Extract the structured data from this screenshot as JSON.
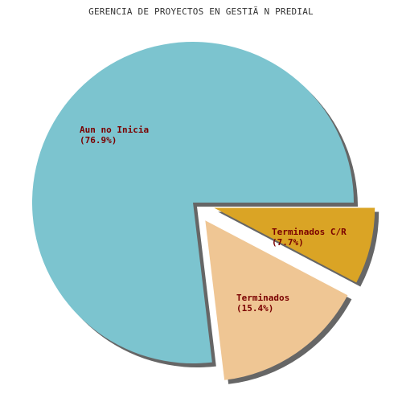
{
  "chart_data": {
    "type": "pie",
    "title": "GERENCIA DE PROYECTOS EN GESTIÃ N PREDIAL",
    "slices": [
      {
        "label": "Aun no Inicia",
        "value": 76.9,
        "pct_text": "(76.9%)",
        "color": "#7cc4cf",
        "exploded": false
      },
      {
        "label": "Terminados",
        "value": 15.4,
        "pct_text": "(15.4%)",
        "color": "#efc694",
        "exploded": true
      },
      {
        "label": "Terminados C/R",
        "value": 7.7,
        "pct_text": "(7.7%)",
        "color": "#daa425",
        "exploded": true
      }
    ],
    "label_color": "#7a0000",
    "shadow_color": "#666666",
    "legend": "none",
    "grid": false
  }
}
